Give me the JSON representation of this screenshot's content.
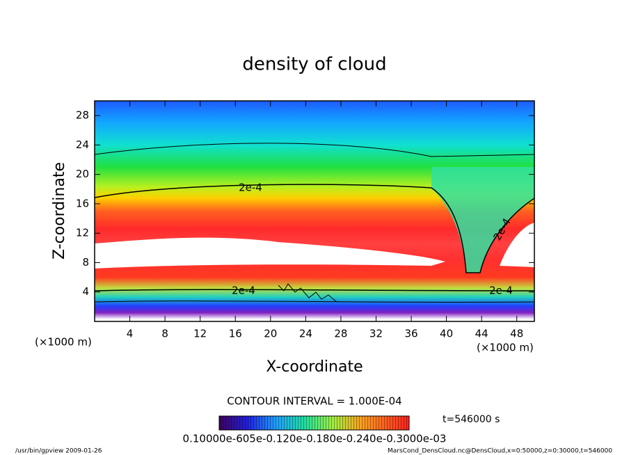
{
  "chart_data": {
    "type": "contour",
    "title": "density of cloud",
    "xlabel": "X-coordinate",
    "ylabel": "Z-coordinate",
    "xunit": "(×1000 m)",
    "yunit": "(×1000 m)",
    "xlim": [
      0,
      50
    ],
    "ylim": [
      0,
      30
    ],
    "xticks": [
      4,
      8,
      12,
      16,
      20,
      24,
      28,
      32,
      36,
      40,
      44,
      48
    ],
    "yticks": [
      4,
      8,
      12,
      16,
      20,
      24,
      28
    ],
    "contour_labels": [
      "2e-4",
      "2e-4",
      "2e-4",
      "2e-4"
    ],
    "contour_interval": "CONTOUR INTERVAL = 1.000E-04",
    "time": "t=546000 s",
    "colorbar_labels": "0.10000e-605e-0.120e-0.180e-0.240e-0.3000e-03",
    "footer_left": "/usr/bin/gpview  2009-01-26",
    "footer_right": "MarsCond_DensCloud.nc@DensCloud,x=0:50000,z=0:30000,t=546000"
  }
}
